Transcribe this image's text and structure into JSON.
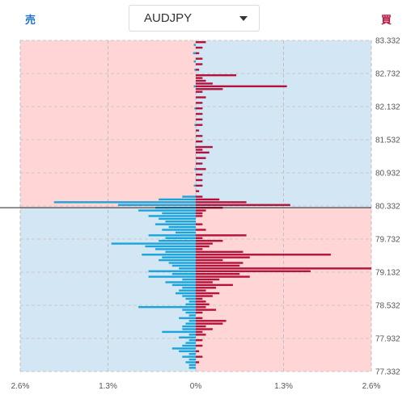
{
  "header": {
    "sell_label": "売",
    "buy_label": "買",
    "pair_selector": {
      "selected": "AUDJPY"
    }
  },
  "colors": {
    "sell_bar": "#1aa4dc",
    "buy_bar": "#b5123b",
    "pink_zone": "#ffd5d6",
    "blue_zone": "#d3e6f4",
    "sell_label_color": "#1a73c9",
    "buy_label_color": "#b5123b"
  },
  "chart_data": {
    "type": "bar",
    "orientation": "horizontal",
    "current_price": 80.3,
    "y_ticks": [
      "83.332",
      "82.732",
      "82.132",
      "81.532",
      "80.932",
      "80.332",
      "79.732",
      "79.132",
      "78.532",
      "77.932",
      "77.332"
    ],
    "x_ticks": [
      "2.6%",
      "1.3%",
      "0%",
      "1.3%",
      "2.6%"
    ],
    "ylim": [
      77.332,
      83.332
    ],
    "xlim_percent": 2.6,
    "grid": true,
    "series": [
      {
        "name": "売",
        "side": "left",
        "values": [
          [
            83.25,
            0.03
          ],
          [
            83.1,
            0.04
          ],
          [
            82.95,
            0.03
          ],
          [
            82.8,
            0.02
          ],
          [
            82.5,
            0.03
          ],
          [
            82.1,
            0.02
          ],
          [
            81.8,
            0.02
          ],
          [
            81.4,
            0.01
          ],
          [
            81.0,
            0.02
          ],
          [
            80.7,
            0.03
          ],
          [
            80.5,
            0.2
          ],
          [
            80.45,
            0.55
          ],
          [
            80.4,
            2.1
          ],
          [
            80.35,
            1.15
          ],
          [
            80.3,
            0.6
          ],
          [
            80.25,
            0.85
          ],
          [
            80.2,
            0.5
          ],
          [
            80.15,
            0.7
          ],
          [
            80.1,
            0.55
          ],
          [
            80.05,
            0.45
          ],
          [
            80.0,
            0.6
          ],
          [
            79.95,
            0.4
          ],
          [
            79.9,
            0.5
          ],
          [
            79.85,
            0.3
          ],
          [
            79.8,
            0.7
          ],
          [
            79.75,
            0.45
          ],
          [
            79.7,
            0.55
          ],
          [
            79.65,
            1.25
          ],
          [
            79.6,
            0.75
          ],
          [
            79.55,
            0.6
          ],
          [
            79.5,
            0.45
          ],
          [
            79.45,
            0.8
          ],
          [
            79.4,
            0.5
          ],
          [
            79.35,
            0.55
          ],
          [
            79.3,
            0.4
          ],
          [
            79.25,
            0.35
          ],
          [
            79.2,
            0.25
          ],
          [
            79.15,
            0.7
          ],
          [
            79.1,
            0.35
          ],
          [
            79.05,
            0.7
          ],
          [
            79.0,
            0.2
          ],
          [
            78.95,
            0.45
          ],
          [
            78.9,
            0.35
          ],
          [
            78.85,
            0.2
          ],
          [
            78.8,
            0.25
          ],
          [
            78.75,
            0.3
          ],
          [
            78.7,
            0.2
          ],
          [
            78.65,
            0.15
          ],
          [
            78.6,
            0.1
          ],
          [
            78.55,
            0.15
          ],
          [
            78.5,
            0.85
          ],
          [
            78.45,
            0.2
          ],
          [
            78.4,
            0.15
          ],
          [
            78.35,
            0.1
          ],
          [
            78.3,
            0.25
          ],
          [
            78.25,
            0.1
          ],
          [
            78.2,
            0.15
          ],
          [
            78.15,
            0.2
          ],
          [
            78.1,
            0.2
          ],
          [
            78.05,
            0.5
          ],
          [
            78.0,
            0.1
          ],
          [
            77.95,
            0.25
          ],
          [
            77.9,
            0.1
          ],
          [
            77.85,
            0.15
          ],
          [
            77.8,
            0.2
          ],
          [
            77.75,
            0.35
          ],
          [
            77.7,
            0.25
          ],
          [
            77.65,
            0.1
          ],
          [
            77.6,
            0.2
          ],
          [
            77.55,
            0.1
          ],
          [
            77.5,
            0.15
          ],
          [
            77.45,
            0.1
          ],
          [
            77.4,
            0.1
          ]
        ]
      },
      {
        "name": "買",
        "side": "right",
        "values": [
          [
            83.3,
            0.15
          ],
          [
            83.2,
            0.1
          ],
          [
            83.1,
            0.05
          ],
          [
            83.0,
            0.1
          ],
          [
            82.9,
            0.1
          ],
          [
            82.8,
            0.05
          ],
          [
            82.7,
            0.6
          ],
          [
            82.65,
            0.1
          ],
          [
            82.6,
            0.15
          ],
          [
            82.55,
            0.25
          ],
          [
            82.5,
            1.35
          ],
          [
            82.45,
            0.4
          ],
          [
            82.4,
            0.1
          ],
          [
            82.3,
            0.15
          ],
          [
            82.2,
            0.1
          ],
          [
            82.1,
            0.1
          ],
          [
            82.0,
            0.1
          ],
          [
            81.9,
            0.1
          ],
          [
            81.8,
            0.1
          ],
          [
            81.7,
            0.05
          ],
          [
            81.6,
            0.1
          ],
          [
            81.5,
            0.1
          ],
          [
            81.4,
            0.25
          ],
          [
            81.35,
            0.1
          ],
          [
            81.3,
            0.2
          ],
          [
            81.2,
            0.15
          ],
          [
            81.1,
            0.1
          ],
          [
            81.0,
            0.15
          ],
          [
            80.9,
            0.1
          ],
          [
            80.8,
            0.1
          ],
          [
            80.7,
            0.1
          ],
          [
            80.6,
            0.05
          ],
          [
            80.5,
            0.1
          ],
          [
            80.45,
            0.35
          ],
          [
            80.4,
            0.75
          ],
          [
            80.35,
            1.4
          ],
          [
            80.3,
            0.4
          ],
          [
            80.25,
            0.15
          ],
          [
            80.2,
            0.1
          ],
          [
            80.15,
            0.1
          ],
          [
            80.0,
            0.1
          ],
          [
            79.9,
            0.15
          ],
          [
            79.8,
            0.75
          ],
          [
            79.75,
            0.1
          ],
          [
            79.7,
            0.4
          ],
          [
            79.65,
            0.25
          ],
          [
            79.6,
            0.2
          ],
          [
            79.55,
            0.1
          ],
          [
            79.5,
            0.7
          ],
          [
            79.45,
            2.0
          ],
          [
            79.4,
            0.8
          ],
          [
            79.35,
            0.4
          ],
          [
            79.3,
            0.7
          ],
          [
            79.25,
            0.65
          ],
          [
            79.2,
            2.6
          ],
          [
            79.15,
            1.7
          ],
          [
            79.1,
            0.65
          ],
          [
            79.05,
            0.8
          ],
          [
            79.0,
            0.35
          ],
          [
            78.95,
            0.25
          ],
          [
            78.9,
            0.55
          ],
          [
            78.85,
            0.3
          ],
          [
            78.8,
            0.15
          ],
          [
            78.75,
            0.35
          ],
          [
            78.7,
            0.25
          ],
          [
            78.65,
            0.1
          ],
          [
            78.6,
            0.15
          ],
          [
            78.55,
            0.2
          ],
          [
            78.5,
            0.15
          ],
          [
            78.45,
            0.3
          ],
          [
            78.4,
            0.1
          ],
          [
            78.3,
            0.1
          ],
          [
            78.25,
            0.45
          ],
          [
            78.2,
            0.4
          ],
          [
            78.15,
            0.15
          ],
          [
            78.1,
            0.25
          ],
          [
            78.05,
            0.1
          ],
          [
            78.0,
            0.15
          ],
          [
            77.9,
            0.1
          ],
          [
            77.8,
            0.1
          ],
          [
            77.7,
            0.05
          ],
          [
            77.6,
            0.1
          ],
          [
            77.5,
            0.05
          ]
        ]
      }
    ]
  }
}
